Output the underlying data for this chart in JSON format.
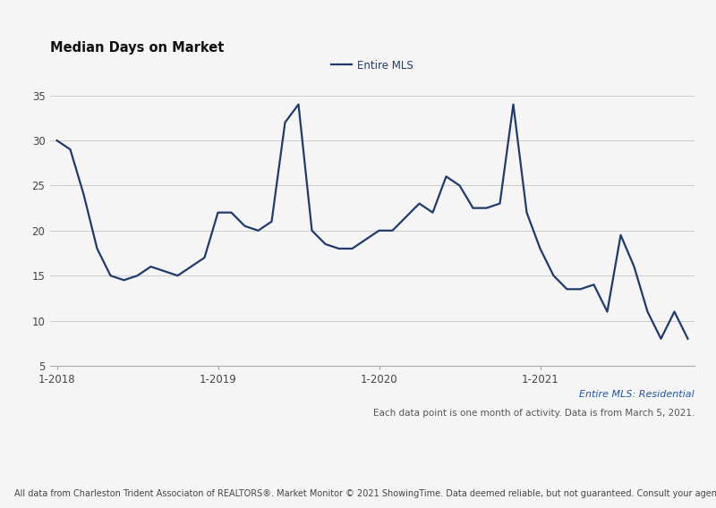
{
  "title": "Median Days on Market",
  "legend_label": "Entire MLS",
  "line_color": "#1f3b6e",
  "background_color": "#f5f5f5",
  "ylim": [
    5,
    36
  ],
  "yticks": [
    5,
    10,
    15,
    20,
    25,
    30,
    35
  ],
  "xlabel_labels": [
    "1-2018",
    "1-2019",
    "1-2020",
    "1-2021"
  ],
  "footnote1": "Entire MLS: Residential",
  "footnote2": "Each data point is one month of activity. Data is from March 5, 2021.",
  "footnote3": "All data from Charleston Trident Associaton of REALTORS®. Market Monitor © 2021 ShowingTime. Data deemed reliable, but not guaranteed. Consult your agent for market specifics.",
  "values": [
    30,
    29,
    24,
    18,
    15,
    14.5,
    15,
    16,
    15.5,
    15,
    16,
    17,
    22,
    22,
    20.5,
    20,
    21,
    32,
    34,
    20,
    18.5,
    18,
    18,
    19,
    20,
    20,
    21.5,
    23,
    22,
    26,
    25,
    22.5,
    22.5,
    23,
    34,
    22,
    18,
    15,
    13.5,
    13.5,
    14,
    11,
    19.5,
    16,
    11,
    8,
    11,
    8
  ],
  "num_points": 48
}
